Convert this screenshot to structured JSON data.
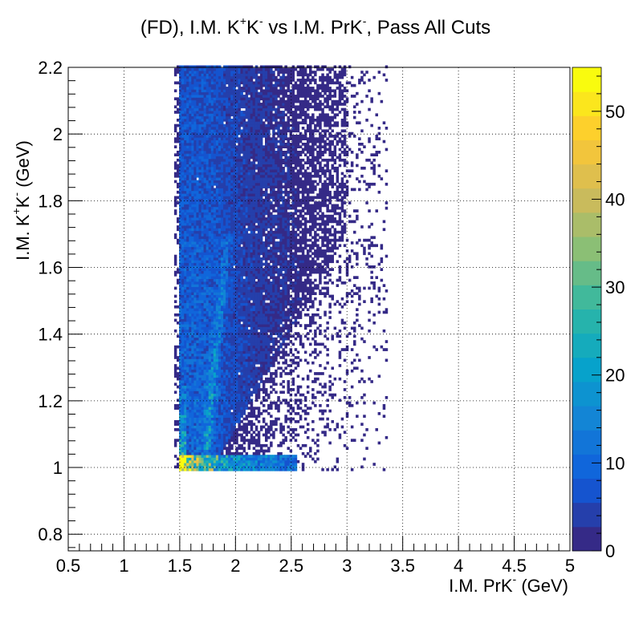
{
  "chart_data": {
    "type": "heatmap",
    "title_parts": [
      "(FD), I.M. K",
      "+",
      "K",
      "-",
      " vs I.M. PrK",
      "-",
      ", Pass All Cuts"
    ],
    "xlabel_parts": [
      "I.M. PrK",
      "-",
      " (GeV)"
    ],
    "ylabel_parts": [
      "I.M. K",
      "+",
      "K",
      "-",
      " (GeV)"
    ],
    "xlim": [
      0.5,
      5.0
    ],
    "ylim": [
      0.75,
      2.2
    ],
    "x_ticks": [
      "0.5",
      "1",
      "1.5",
      "2",
      "2.5",
      "3",
      "3.5",
      "4",
      "4.5",
      "5"
    ],
    "y_ticks": [
      "0.8",
      "1",
      "1.2",
      "1.4",
      "1.6",
      "1.8",
      "2",
      "2.2"
    ],
    "z_range": [
      0,
      55
    ],
    "z_ticks": [
      "0",
      "10",
      "20",
      "30",
      "40",
      "50"
    ],
    "grid": true,
    "colormap": [
      "#352a87",
      "#0f5cdd",
      "#1481d6",
      "#06a4ca",
      "#2eb7a4",
      "#87bf77",
      "#d1bb59",
      "#fec832",
      "#f9fb0e"
    ],
    "density_features": {
      "occupied_x_range": [
        1.45,
        3.35
      ],
      "occupied_y_range": [
        0.99,
        2.2
      ],
      "threshold_band": {
        "x": [
          1.5,
          2.55
        ],
        "y": [
          0.99,
          1.04
        ],
        "peak_counts": 50
      },
      "vertical_band": {
        "x": [
          1.5,
          1.56
        ],
        "y": [
          1.0,
          1.25
        ],
        "peak_counts": 45
      },
      "diagonal_band": {
        "from": [
          1.75,
          1.1
        ],
        "to": [
          1.9,
          1.6
        ],
        "peak_counts": 25
      },
      "bulk_counts": 8
    }
  }
}
